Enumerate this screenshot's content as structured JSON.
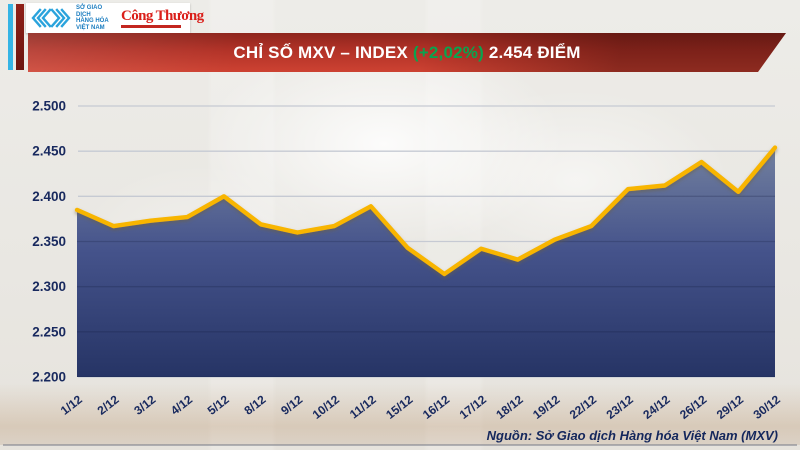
{
  "header": {
    "logo": {
      "icon": "mxv-chevron-diamonds-icon",
      "line1": "SỞ GIAO DỊCH",
      "line2": "HÀNG HÓA",
      "line3": "VIỆT NAM",
      "brand": "Công Thương"
    },
    "banner": {
      "title_prefix": "CHỈ SỐ MXV – INDEX ",
      "change": "(+2,02%)",
      "value_text": " 2.454 ĐIỂM"
    }
  },
  "chart_data": {
    "type": "area",
    "title": "CHỈ SỐ MXV – INDEX (+2,02%) 2.454 ĐIỂM",
    "x": [
      "1/12",
      "2/12",
      "3/12",
      "4/12",
      "5/12",
      "8/12",
      "9/12",
      "10/12",
      "11/12",
      "15/12",
      "16/12",
      "17/12",
      "18/12",
      "19/12",
      "22/12",
      "23/12",
      "24/12",
      "26/12",
      "29/12",
      "30/12"
    ],
    "values": [
      2385,
      2367,
      2373,
      2377,
      2400,
      2369,
      2360,
      2367,
      2389,
      2343,
      2314,
      2342,
      2330,
      2352,
      2367,
      2408,
      2412,
      2438,
      2405,
      2454
    ],
    "last_value_label": "2.454",
    "change_label": "+2,02%",
    "ylim": [
      2200,
      2500
    ],
    "yticks": [
      2500,
      2450,
      2400,
      2350,
      2300,
      2250,
      2200
    ],
    "ytick_labels": [
      "2.500",
      "2.450",
      "2.400",
      "2.350",
      "2.300",
      "2.250",
      "2.200"
    ],
    "xlabel": "",
    "ylabel": "",
    "grid": "horizontal",
    "legend": "none"
  },
  "colors": {
    "line": "#f8b500",
    "area_top": "#72809f",
    "area_mid": "#45538b",
    "area_bottom": "#263465",
    "axis_text": "#18295e",
    "grid": "#c6cad3",
    "grid_over_area": "rgba(12,22,52,0.20)",
    "banner_red_top": "#8e251d",
    "banner_red_bottom": "#cd4232",
    "change_green": "#09a44f",
    "stripe_cyan": "#35b4e5",
    "stripe_maroon": "#7e1c13",
    "brand_red": "#da1f1a",
    "logo_blue": "#2aa3dc"
  },
  "footer": {
    "source": "Nguồn: Sở Giao dịch Hàng hóa Việt Nam (MXV)"
  }
}
